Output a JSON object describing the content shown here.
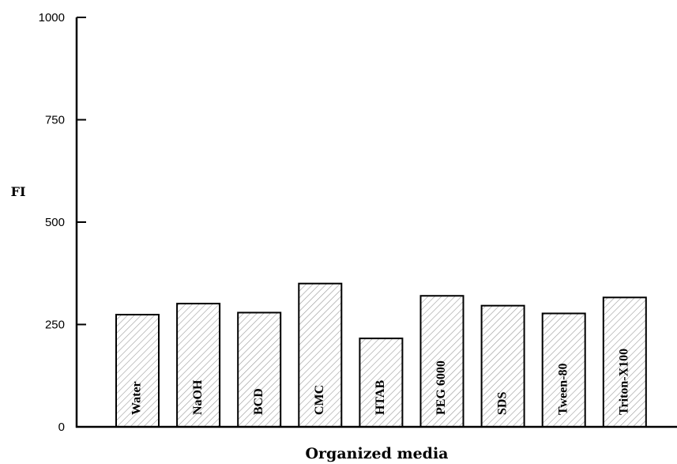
{
  "chart_data": {
    "type": "bar",
    "title": "",
    "xlabel": "Organized media",
    "ylabel": "FI",
    "categories": [
      "Water",
      "NaOH",
      "BCD",
      "CMC",
      "HTAB",
      "PEG 6000",
      "SDS",
      "Tween-80",
      "Triton-X100"
    ],
    "values": [
      274,
      301,
      279,
      350,
      216,
      320,
      296,
      277,
      316
    ],
    "ylim": [
      0,
      1000
    ],
    "yticks": [
      0,
      250,
      500,
      750,
      1000
    ],
    "grid": false,
    "legend": "none",
    "bar_fill": "hatched",
    "bar_color": "#000000",
    "hatch_color": "#9a9a9a"
  }
}
